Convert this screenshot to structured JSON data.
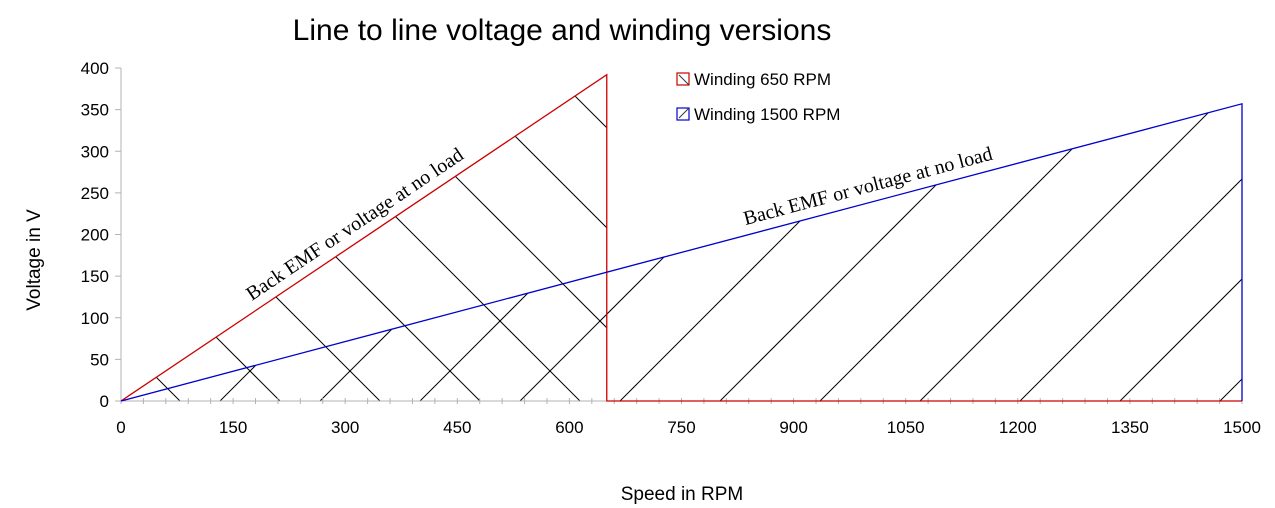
{
  "chart_data": {
    "type": "area",
    "title": "Line to line voltage and winding versions",
    "xlabel": "Speed in RPM",
    "ylabel": "Voltage in V",
    "xlim": [
      0,
      1500
    ],
    "ylim": [
      0,
      400
    ],
    "x_ticks": [
      "0",
      "150",
      "300",
      "450",
      "600",
      "750",
      "900",
      "1050",
      "1200",
      "1350",
      "1500"
    ],
    "y_ticks": [
      "0",
      "50",
      "100",
      "150",
      "200",
      "250",
      "300",
      "350",
      "400"
    ],
    "grid": false,
    "legend_position": "top-center",
    "series": [
      {
        "name": "Winding 650 RPM",
        "color": "#cc0000",
        "x": [
          0,
          650,
          650,
          1500
        ],
        "y": [
          0,
          392,
          0,
          0
        ]
      },
      {
        "name": "Winding 1500 RPM",
        "color": "#0000cc",
        "x": [
          0,
          1500,
          1500
        ],
        "y": [
          0,
          357,
          0
        ]
      }
    ],
    "annotations": [
      {
        "text": "Back EMF or voltage at no load",
        "series": 0
      },
      {
        "text": "Back EMF or voltage at no load",
        "series": 1
      }
    ]
  }
}
